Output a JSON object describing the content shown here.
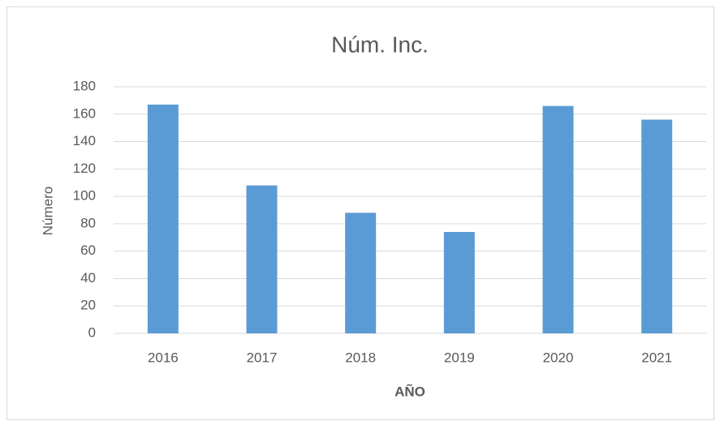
{
  "chart_data": {
    "type": "bar",
    "title": "Núm. Inc.",
    "x_label": "AÑO",
    "y_label": "Número",
    "categories": [
      "2016",
      "2017",
      "2018",
      "2019",
      "2020",
      "2021"
    ],
    "values": [
      167,
      108,
      88,
      74,
      166,
      156
    ],
    "color": "#5b9bd5",
    "ylim": [
      0,
      180
    ],
    "yticks": [
      0,
      20,
      40,
      60,
      80,
      100,
      120,
      140,
      160,
      180
    ],
    "grid": true
  }
}
